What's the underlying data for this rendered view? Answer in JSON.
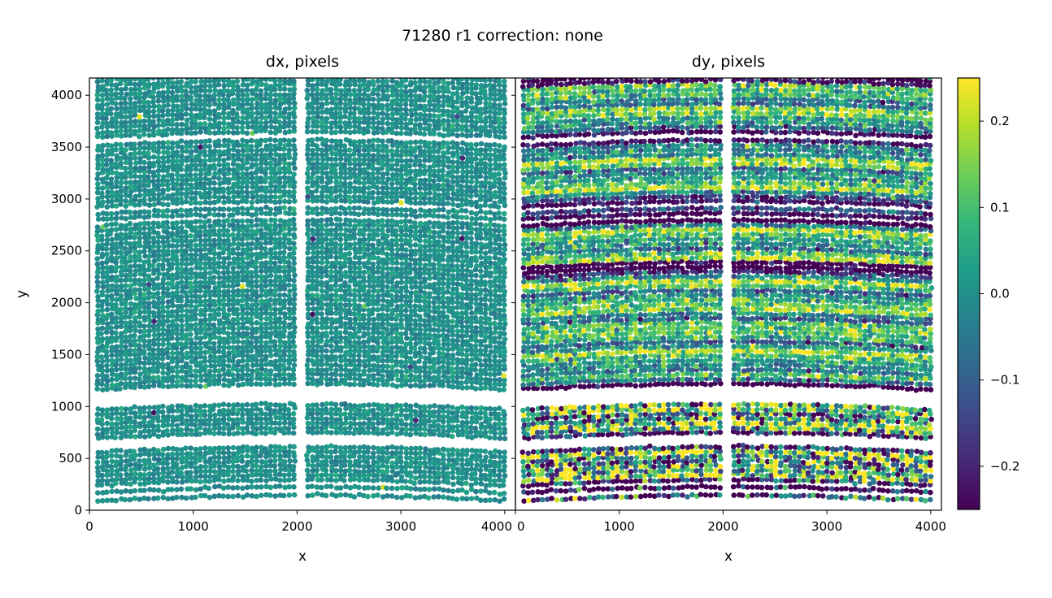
{
  "chart_data": {
    "type": "scatter",
    "title": "71280 r1  correction: none",
    "colormap": "viridis",
    "colormap_stops": [
      "#440154",
      "#482878",
      "#3e4989",
      "#31688e",
      "#26828e",
      "#1f9e89",
      "#35b779",
      "#6ece58",
      "#b5de2b",
      "#fde725"
    ],
    "clim": [
      -0.25,
      0.25
    ],
    "colorbar": {
      "ticks": [
        0.2,
        0.1,
        0.0,
        -0.1,
        -0.2
      ],
      "tick_labels": [
        "0.2",
        "0.1",
        "0.0",
        "−0.1",
        "−0.2"
      ]
    },
    "xlim": [
      0,
      4103
    ],
    "ylim": [
      0,
      4166
    ],
    "x_gap": [
      2010,
      2080
    ],
    "arc_height": 60,
    "bands_y": [
      [
        85,
        115
      ],
      [
        165,
        195
      ],
      [
        235,
        550
      ],
      [
        690,
        1000
      ],
      [
        1160,
        2290
      ],
      [
        2330,
        2740
      ],
      [
        2800,
        2830
      ],
      [
        2850,
        2880
      ],
      [
        2920,
        3520
      ],
      [
        3590,
        4095
      ],
      [
        4130,
        4220
      ]
    ],
    "panels": [
      {
        "title": "dx, pixels",
        "xlabel": "x",
        "ylabel": "y",
        "x_ticks": [
          0,
          1000,
          2000,
          3000,
          4000
        ],
        "x_tick_labels": [
          "0",
          "1000",
          "2000",
          "3000",
          "4000"
        ],
        "y_ticks": [
          0,
          500,
          1000,
          1500,
          2000,
          2500,
          3000,
          3500,
          4000
        ],
        "y_tick_labels": [
          "0",
          "500",
          "1000",
          "1500",
          "2000",
          "2500",
          "3000",
          "3500",
          "4000"
        ],
        "value_mean": 0.0,
        "value_spread": 0.02
      },
      {
        "title": "dy, pixels",
        "xlabel": "x",
        "x_ticks": [
          0,
          1000,
          2000,
          3000,
          4000
        ],
        "x_tick_labels": [
          "0",
          "1000",
          "2000",
          "3000",
          "4000"
        ],
        "y_ticks": [
          0,
          500,
          1000,
          1500,
          2000,
          2500,
          3000,
          3500,
          4000
        ],
        "value_mean": 0.05,
        "value_spread": 0.12
      }
    ]
  }
}
